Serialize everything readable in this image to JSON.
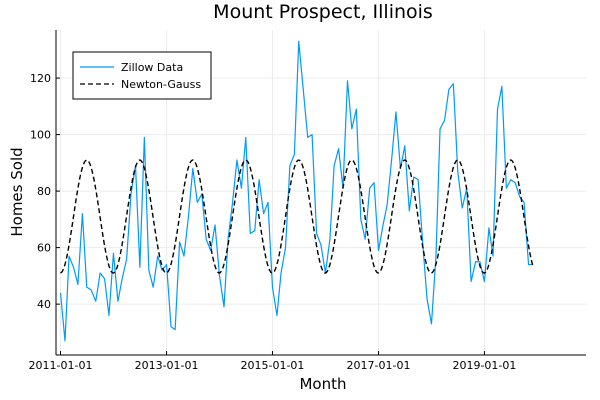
{
  "chart_data": {
    "type": "line",
    "title": "Mount Prospect, Illinois",
    "xlabel": "Month",
    "ylabel": "Homes Sold",
    "x_axis_type": "date",
    "xlim": [
      "2010-12-01",
      "2020-12-01"
    ],
    "ylim": [
      22,
      137
    ],
    "xticks": [
      "2011-01-01",
      "2013-01-01",
      "2015-01-01",
      "2017-01-01",
      "2019-01-01"
    ],
    "yticks": [
      40,
      60,
      80,
      100,
      120
    ],
    "grid": true,
    "legend_position": "top-left",
    "series": [
      {
        "name": "Zillow Data",
        "color": "#009af9",
        "style": "solid",
        "points": [
          [
            "2011-01-01",
            44
          ],
          [
            "2011-02-01",
            27
          ],
          [
            "2011-03-01",
            57
          ],
          [
            "2011-04-01",
            53
          ],
          [
            "2011-05-01",
            47
          ],
          [
            "2011-06-01",
            72
          ],
          [
            "2011-07-01",
            46
          ],
          [
            "2011-08-01",
            45
          ],
          [
            "2011-09-01",
            41
          ],
          [
            "2011-10-01",
            51
          ],
          [
            "2011-11-01",
            49
          ],
          [
            "2011-12-01",
            36
          ],
          [
            "2012-01-01",
            58
          ],
          [
            "2012-02-01",
            41
          ],
          [
            "2012-03-01",
            49
          ],
          [
            "2012-04-01",
            56
          ],
          [
            "2012-05-01",
            79
          ],
          [
            "2012-06-01",
            89
          ],
          [
            "2012-07-01",
            53
          ],
          [
            "2012-08-01",
            99
          ],
          [
            "2012-09-01",
            52
          ],
          [
            "2012-10-01",
            46
          ],
          [
            "2012-11-01",
            57
          ],
          [
            "2012-12-01",
            52
          ],
          [
            "2013-01-01",
            54
          ],
          [
            "2013-02-01",
            32
          ],
          [
            "2013-03-01",
            31
          ],
          [
            "2013-04-01",
            62
          ],
          [
            "2013-05-01",
            57
          ],
          [
            "2013-06-01",
            71
          ],
          [
            "2013-07-01",
            88
          ],
          [
            "2013-08-01",
            76
          ],
          [
            "2013-09-01",
            79
          ],
          [
            "2013-10-01",
            63
          ],
          [
            "2013-11-01",
            59
          ],
          [
            "2013-12-01",
            68
          ],
          [
            "2014-01-01",
            50
          ],
          [
            "2014-02-01",
            39
          ],
          [
            "2014-03-01",
            63
          ],
          [
            "2014-04-01",
            76
          ],
          [
            "2014-05-01",
            91
          ],
          [
            "2014-06-01",
            81
          ],
          [
            "2014-07-01",
            99
          ],
          [
            "2014-08-01",
            65
          ],
          [
            "2014-09-01",
            66
          ],
          [
            "2014-10-01",
            84
          ],
          [
            "2014-11-01",
            72
          ],
          [
            "2014-12-01",
            76
          ],
          [
            "2015-01-01",
            46
          ],
          [
            "2015-02-01",
            36
          ],
          [
            "2015-03-01",
            51
          ],
          [
            "2015-04-01",
            60
          ],
          [
            "2015-05-01",
            89
          ],
          [
            "2015-06-01",
            93
          ],
          [
            "2015-07-01",
            133
          ],
          [
            "2015-08-01",
            116
          ],
          [
            "2015-09-01",
            99
          ],
          [
            "2015-10-01",
            100
          ],
          [
            "2015-11-01",
            65
          ],
          [
            "2015-12-01",
            61
          ],
          [
            "2016-01-01",
            51
          ],
          [
            "2016-02-01",
            63
          ],
          [
            "2016-03-01",
            89
          ],
          [
            "2016-04-01",
            95
          ],
          [
            "2016-05-01",
            81
          ],
          [
            "2016-06-01",
            119
          ],
          [
            "2016-07-01",
            102
          ],
          [
            "2016-08-01",
            109
          ],
          [
            "2016-09-01",
            70
          ],
          [
            "2016-10-01",
            63
          ],
          [
            "2016-11-01",
            81
          ],
          [
            "2016-12-01",
            83
          ],
          [
            "2017-01-01",
            59
          ],
          [
            "2017-02-01",
            68
          ],
          [
            "2017-03-01",
            75
          ],
          [
            "2017-04-01",
            91
          ],
          [
            "2017-05-01",
            108
          ],
          [
            "2017-06-01",
            88
          ],
          [
            "2017-07-01",
            96
          ],
          [
            "2017-08-01",
            73
          ],
          [
            "2017-09-01",
            85
          ],
          [
            "2017-10-01",
            84
          ],
          [
            "2017-11-01",
            62
          ],
          [
            "2017-12-01",
            42
          ],
          [
            "2018-01-01",
            33
          ],
          [
            "2018-02-01",
            57
          ],
          [
            "2018-03-01",
            102
          ],
          [
            "2018-04-01",
            105
          ],
          [
            "2018-05-01",
            116
          ],
          [
            "2018-06-01",
            118
          ],
          [
            "2018-07-01",
            87
          ],
          [
            "2018-08-01",
            74
          ],
          [
            "2018-09-01",
            81
          ],
          [
            "2018-10-01",
            48
          ],
          [
            "2018-11-01",
            55
          ],
          [
            "2018-12-01",
            55
          ],
          [
            "2019-01-01",
            48
          ],
          [
            "2019-02-01",
            67
          ],
          [
            "2019-03-01",
            57
          ],
          [
            "2019-04-01",
            109
          ],
          [
            "2019-05-01",
            117
          ],
          [
            "2019-06-01",
            81
          ],
          [
            "2019-07-01",
            84
          ],
          [
            "2019-08-01",
            83
          ],
          [
            "2019-09-01",
            78
          ],
          [
            "2019-10-01",
            76
          ],
          [
            "2019-11-01",
            54
          ],
          [
            "2019-12-01",
            54
          ]
        ]
      },
      {
        "name": "Newton-Gauss",
        "color": "#000000",
        "style": "dashed",
        "model": "sinusoid",
        "mean": 71,
        "amplitude": 20,
        "peak_date": "2011-07-01",
        "period_months": 12,
        "x_start": "2011-01-01",
        "x_end": "2019-12-01"
      }
    ]
  }
}
